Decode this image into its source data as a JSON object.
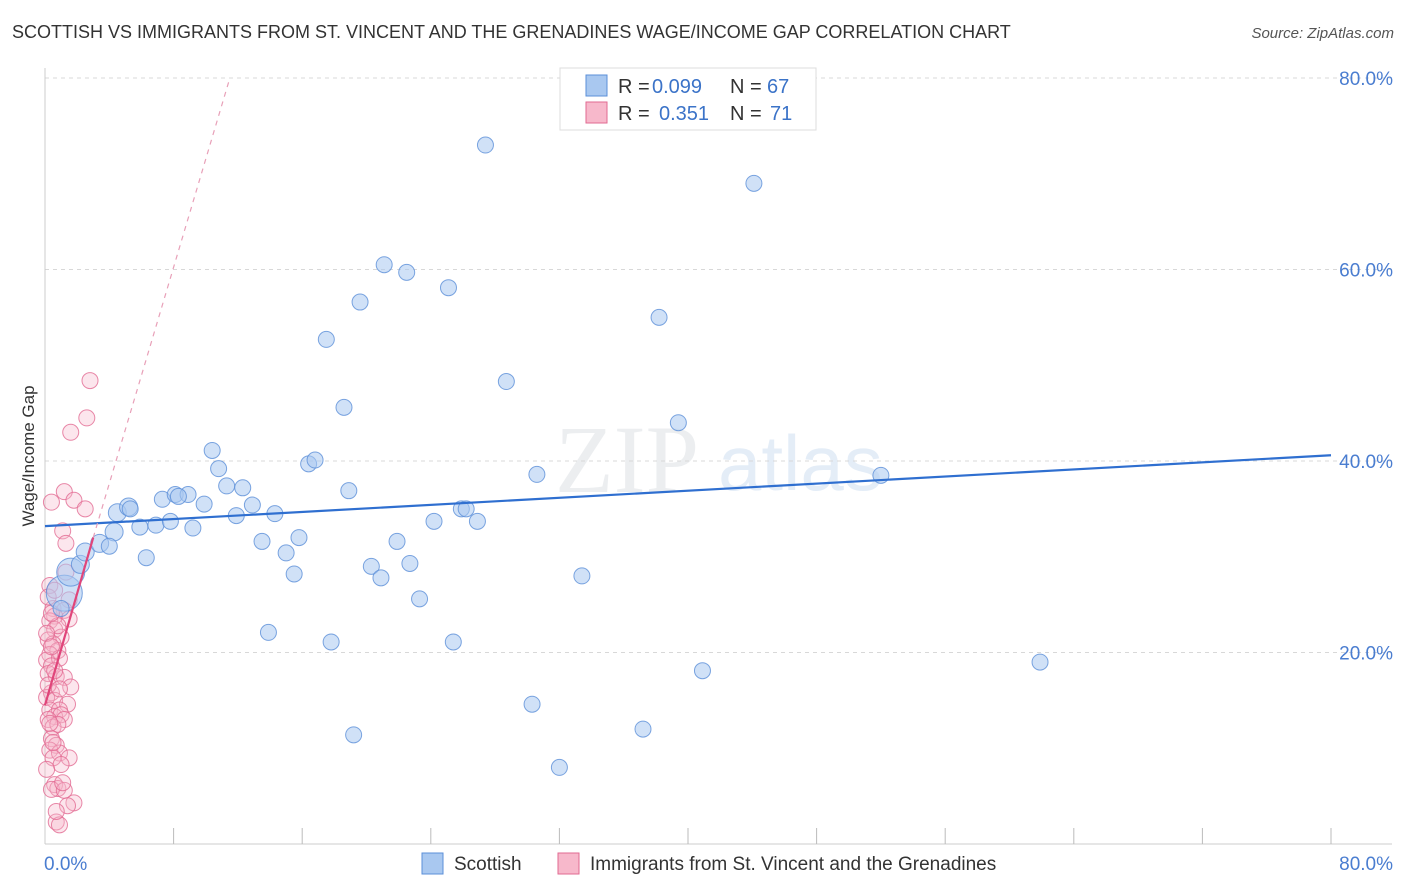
{
  "title": "SCOTTISH VS IMMIGRANTS FROM ST. VINCENT AND THE GRENADINES WAGE/INCOME GAP CORRELATION CHART",
  "source": "Source: ZipAtlas.com",
  "watermark": {
    "zip": "ZIP",
    "atlas": "atlas"
  },
  "colors": {
    "blue_fill": "#a9c8f0",
    "blue_stroke": "#5b8fd8",
    "blue_line": "#2f6fd0",
    "pink_fill": "#f7b8cb",
    "pink_stroke": "#e26a92",
    "pink_line": "#e0457a",
    "axis_text": "#4a7dd0",
    "grid": "#d8d8d8"
  },
  "legend": {
    "rows": [
      {
        "r_label": "R =",
        "r_value": "0.099",
        "n_label": "N =",
        "n_value": "67",
        "series": "blue"
      },
      {
        "r_label": "R =",
        "r_value": "0.351",
        "n_label": "N =",
        "n_value": "71",
        "series": "pink"
      }
    ]
  },
  "bottom_legend": [
    {
      "label": "Scottish",
      "series": "blue"
    },
    {
      "label": "Immigrants from St. Vincent and the Grenadines",
      "series": "pink"
    }
  ],
  "chart_data": {
    "type": "scatter",
    "title": "SCOTTISH VS IMMIGRANTS FROM ST. VINCENT AND THE GRENADINES WAGE/INCOME GAP CORRELATION CHART",
    "xlabel": "",
    "ylabel": "Wage/Income Gap",
    "xlim": [
      0,
      80
    ],
    "ylim": [
      0,
      80
    ],
    "x_tick_labels": {
      "min": "0.0%",
      "max": "80.0%"
    },
    "y_tick_labels": [
      {
        "value": 20,
        "label": "20.0%"
      },
      {
        "value": 40,
        "label": "40.0%"
      },
      {
        "value": 60,
        "label": "60.0%"
      },
      {
        "value": 80,
        "label": "80.0%"
      }
    ],
    "series": [
      {
        "name": "Scottish",
        "color": "blue",
        "trend": {
          "x0": 0,
          "y0": 33.2,
          "x1": 80,
          "y1": 40.6,
          "style": "solid"
        },
        "points": [
          [
            1.2,
            26.2,
            18
          ],
          [
            1.6,
            28.4,
            14
          ],
          [
            2.2,
            29.2,
            9
          ],
          [
            1.0,
            24.6,
            8
          ],
          [
            2.5,
            30.5,
            9
          ],
          [
            3.4,
            31.4,
            9
          ],
          [
            4.3,
            32.6,
            9
          ],
          [
            4.5,
            34.6,
            9
          ],
          [
            5.2,
            35.2,
            9
          ],
          [
            5.3,
            35.0,
            8
          ],
          [
            5.9,
            33.1,
            8
          ],
          [
            6.3,
            29.9,
            8
          ],
          [
            6.9,
            33.3,
            8
          ],
          [
            7.3,
            36.0,
            8
          ],
          [
            7.8,
            33.7,
            8
          ],
          [
            8.1,
            36.5,
            8
          ],
          [
            8.9,
            36.5,
            8
          ],
          [
            9.2,
            33.0,
            8
          ],
          [
            9.9,
            35.5,
            8
          ],
          [
            10.4,
            41.1,
            8
          ],
          [
            10.8,
            39.2,
            8
          ],
          [
            11.3,
            37.4,
            8
          ],
          [
            11.9,
            34.3,
            8
          ],
          [
            12.3,
            37.2,
            8
          ],
          [
            12.9,
            35.4,
            8
          ],
          [
            13.5,
            31.6,
            8
          ],
          [
            13.9,
            22.1,
            8
          ],
          [
            14.3,
            34.5,
            8
          ],
          [
            15.0,
            30.4,
            8
          ],
          [
            15.5,
            28.2,
            8
          ],
          [
            15.8,
            32.0,
            8
          ],
          [
            16.4,
            39.7,
            8
          ],
          [
            16.8,
            40.1,
            8
          ],
          [
            17.5,
            52.7,
            8
          ],
          [
            17.8,
            21.1,
            8
          ],
          [
            18.6,
            45.6,
            8
          ],
          [
            18.9,
            36.9,
            8
          ],
          [
            19.6,
            56.6,
            8
          ],
          [
            20.3,
            29.0,
            8
          ],
          [
            20.9,
            27.8,
            8
          ],
          [
            21.1,
            60.5,
            8
          ],
          [
            21.9,
            31.6,
            8
          ],
          [
            22.5,
            59.7,
            8
          ],
          [
            22.7,
            29.3,
            8
          ],
          [
            23.3,
            25.6,
            8
          ],
          [
            24.2,
            33.7,
            8
          ],
          [
            25.1,
            58.1,
            8
          ],
          [
            25.4,
            21.1,
            8
          ],
          [
            25.9,
            35.0,
            8
          ],
          [
            26.2,
            35.0,
            8
          ],
          [
            26.9,
            33.7,
            8
          ],
          [
            27.4,
            73.0,
            8
          ],
          [
            28.7,
            48.3,
            8
          ],
          [
            30.3,
            14.6,
            8
          ],
          [
            30.6,
            38.6,
            8
          ],
          [
            32.0,
            8.0,
            8
          ],
          [
            33.4,
            28.0,
            8
          ],
          [
            37.2,
            12.0,
            8
          ],
          [
            38.2,
            55.0,
            8
          ],
          [
            39.4,
            44.0,
            8
          ],
          [
            40.9,
            18.1,
            8
          ],
          [
            44.1,
            69.0,
            8
          ],
          [
            19.2,
            11.4,
            8
          ],
          [
            52.0,
            38.5,
            8
          ],
          [
            61.9,
            19.0,
            8
          ],
          [
            8.3,
            36.3,
            8
          ],
          [
            4.0,
            31.1,
            8
          ]
        ]
      },
      {
        "name": "Immigrants from St. Vincent and the Grenadines",
        "color": "pink",
        "trend": {
          "x0": 0,
          "y0": 14.5,
          "x1": 3.0,
          "y1": 32.0,
          "style": "solid",
          "dashed_extension": {
            "x0": 3.0,
            "y0": 32.0,
            "x1": 11.5,
            "y1": 80
          }
        },
        "points": [
          [
            2.8,
            48.4,
            8
          ],
          [
            2.6,
            44.5,
            8
          ],
          [
            1.6,
            43.0,
            8
          ],
          [
            1.2,
            36.8,
            8
          ],
          [
            1.8,
            35.9,
            8
          ],
          [
            0.4,
            35.7,
            8
          ],
          [
            2.5,
            35.0,
            8
          ],
          [
            1.1,
            32.7,
            8
          ],
          [
            1.3,
            31.4,
            8
          ],
          [
            1.5,
            25.5,
            8
          ],
          [
            0.5,
            24.6,
            8
          ],
          [
            1.2,
            24.4,
            8
          ],
          [
            0.6,
            23.8,
            8
          ],
          [
            1.5,
            23.5,
            8
          ],
          [
            0.3,
            23.3,
            8
          ],
          [
            0.6,
            22.4,
            8
          ],
          [
            1.0,
            21.6,
            8
          ],
          [
            0.2,
            21.3,
            8
          ],
          [
            0.5,
            20.9,
            8
          ],
          [
            0.8,
            20.2,
            8
          ],
          [
            0.3,
            19.8,
            8
          ],
          [
            0.1,
            19.2,
            8
          ],
          [
            0.9,
            19.4,
            8
          ],
          [
            0.4,
            18.6,
            8
          ],
          [
            0.2,
            17.8,
            8
          ],
          [
            0.7,
            17.5,
            8
          ],
          [
            1.2,
            17.4,
            8
          ],
          [
            1.6,
            16.4,
            8
          ],
          [
            0.4,
            15.8,
            8
          ],
          [
            0.1,
            15.3,
            8
          ],
          [
            0.6,
            15.0,
            8
          ],
          [
            1.4,
            14.6,
            8
          ],
          [
            0.3,
            14.0,
            8
          ],
          [
            0.9,
            14.0,
            8
          ],
          [
            0.6,
            13.3,
            8
          ],
          [
            1.0,
            13.5,
            8
          ],
          [
            0.2,
            13.0,
            8
          ],
          [
            1.2,
            13.0,
            8
          ],
          [
            0.5,
            12.2,
            8
          ],
          [
            0.8,
            12.5,
            8
          ],
          [
            0.4,
            11.0,
            8
          ],
          [
            0.7,
            10.3,
            8
          ],
          [
            0.3,
            9.8,
            8
          ],
          [
            0.9,
            9.5,
            8
          ],
          [
            1.5,
            9.0,
            8
          ],
          [
            0.5,
            9.0,
            8
          ],
          [
            1.0,
            8.3,
            8
          ],
          [
            0.6,
            6.2,
            8
          ],
          [
            0.8,
            5.8,
            8
          ],
          [
            0.4,
            5.7,
            8
          ],
          [
            1.2,
            5.6,
            8
          ],
          [
            1.8,
            4.3,
            8
          ],
          [
            1.4,
            4.0,
            8
          ],
          [
            0.7,
            2.3,
            8
          ],
          [
            0.9,
            2.0,
            8
          ],
          [
            0.3,
            27.0,
            8
          ],
          [
            0.2,
            25.8,
            8
          ],
          [
            0.6,
            26.5,
            8
          ],
          [
            1.3,
            28.4,
            8
          ],
          [
            0.8,
            22.8,
            8
          ],
          [
            0.1,
            22.0,
            8
          ],
          [
            0.4,
            20.6,
            8
          ],
          [
            0.6,
            18.1,
            8
          ],
          [
            0.2,
            16.6,
            8
          ],
          [
            0.9,
            16.2,
            8
          ],
          [
            0.3,
            12.6,
            8
          ],
          [
            0.5,
            10.6,
            8
          ],
          [
            0.1,
            7.8,
            8
          ],
          [
            1.1,
            6.4,
            8
          ],
          [
            0.7,
            3.4,
            8
          ],
          [
            0.4,
            24.1,
            8
          ]
        ]
      }
    ]
  }
}
